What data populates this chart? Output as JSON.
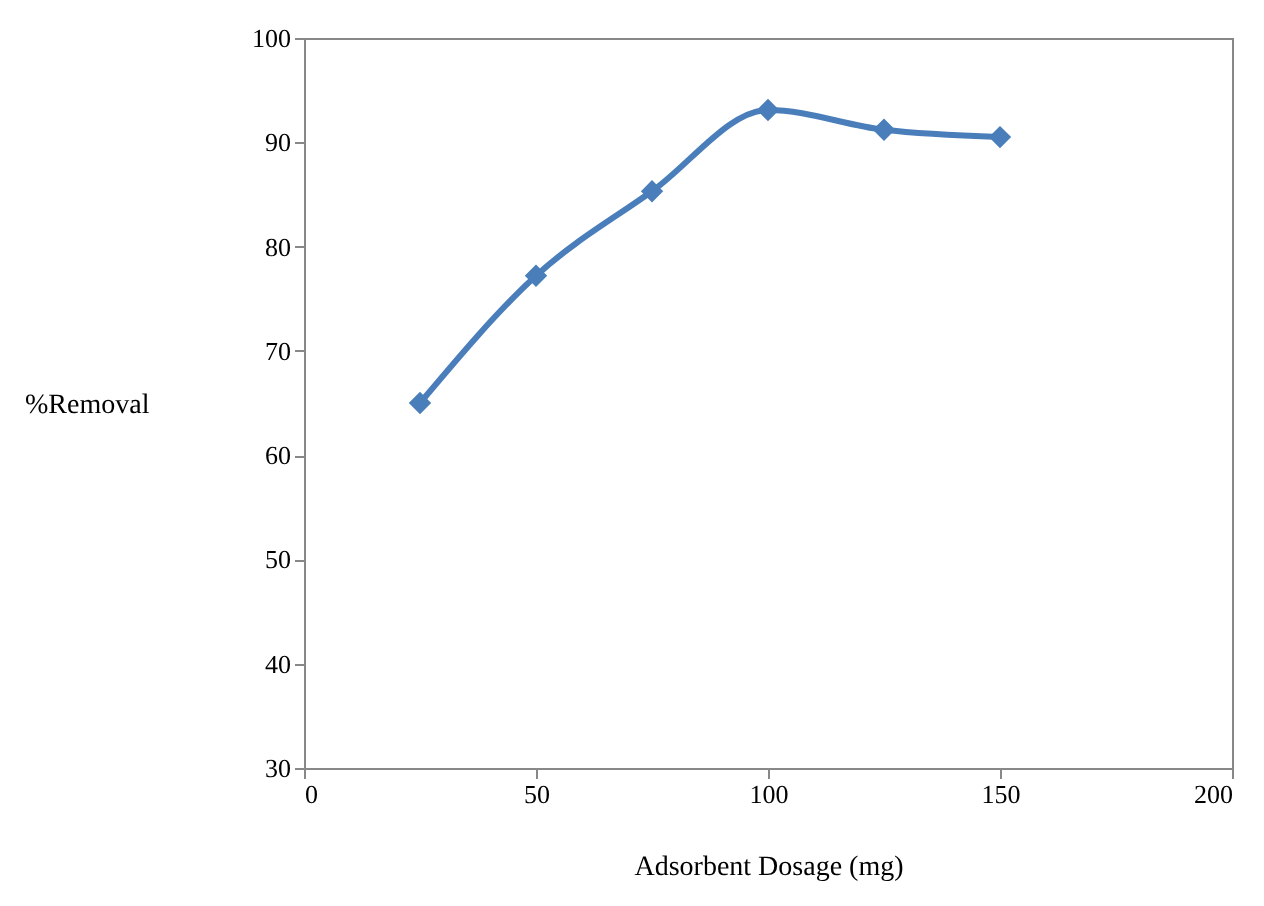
{
  "chart_data": {
    "type": "line",
    "xlabel": "Adsorbent Dosage (mg)",
    "ylabel": "%Removal",
    "x": [
      25,
      50,
      75,
      100,
      125,
      150
    ],
    "series": [
      {
        "color": "#4a7ebb",
        "values": [
          65,
          77.2,
          85.3,
          93.1,
          91.2,
          90.5
        ]
      }
    ],
    "xlim": [
      0,
      200
    ],
    "xticks": [
      0,
      50,
      100,
      150,
      200
    ],
    "ylim": [
      30,
      100
    ],
    "yticks": [
      30,
      40,
      50,
      60,
      70,
      80,
      90,
      100
    ],
    "grid": false,
    "marker": "diamond",
    "line_style": "solid"
  }
}
